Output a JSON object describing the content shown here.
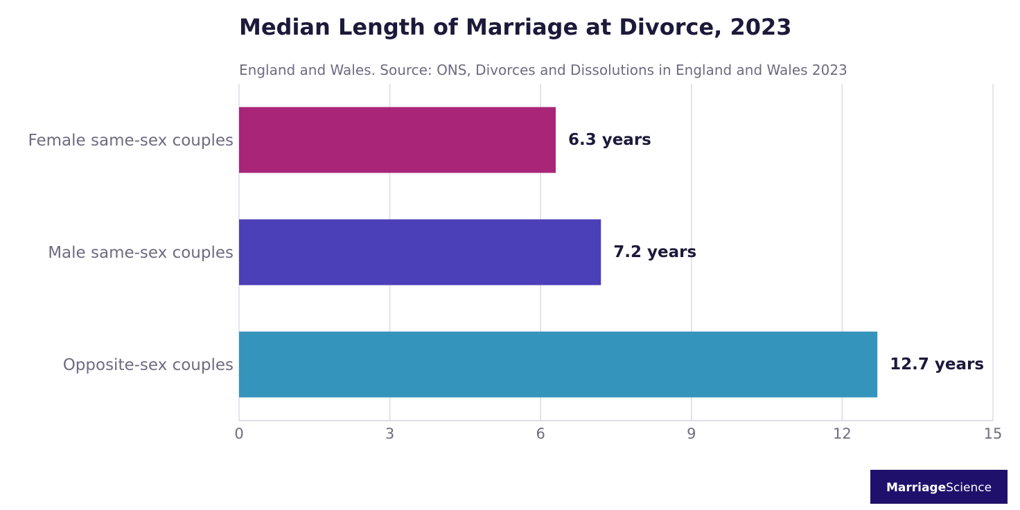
{
  "chart_data": {
    "type": "bar",
    "orientation": "horizontal",
    "title": "Median Length of Marriage at Divorce, 2023",
    "subtitle": "England and Wales. Source: ONS, Divorces and Dissolutions in England and Wales 2023",
    "categories": [
      "Female same-sex couples",
      "Male same-sex couples",
      "Opposite-sex couples"
    ],
    "values": [
      6.3,
      7.2,
      12.7
    ],
    "value_labels": [
      "6.3 years",
      "7.2 years",
      "12.7 years"
    ],
    "colors": [
      "#a82577",
      "#4b40b8",
      "#3594bb"
    ],
    "xlim": [
      0,
      15
    ],
    "xticks": [
      0,
      3,
      6,
      9,
      12,
      15
    ],
    "xtick_labels": [
      "0",
      "3",
      "6",
      "9",
      "12",
      "15"
    ],
    "xlabel": "",
    "ylabel": "",
    "grid": "vertical"
  },
  "branding": {
    "logo_bold": "Marriage",
    "logo_regular": "Science",
    "logo_bg_color": "#1f106b"
  }
}
